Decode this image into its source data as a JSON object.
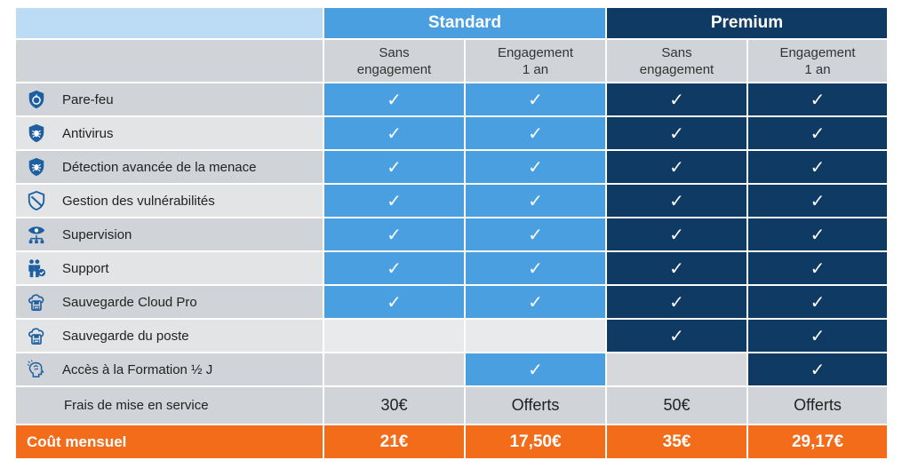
{
  "header": {
    "standard": "Standard",
    "premium": "Premium"
  },
  "subheader": {
    "no_commit": [
      "Sans",
      "engagement"
    ],
    "one_year": [
      "Engagement",
      "1 an"
    ]
  },
  "check_glyph": "✓",
  "features": [
    {
      "label": "Pare-feu",
      "icon": "firewall-icon",
      "values": [
        true,
        true,
        true,
        true
      ]
    },
    {
      "label": "Antivirus",
      "icon": "antivirus-icon",
      "values": [
        true,
        true,
        true,
        true
      ]
    },
    {
      "label": "Détection avancée de la menace",
      "icon": "threat-detection-icon",
      "values": [
        true,
        true,
        true,
        true
      ]
    },
    {
      "label": "Gestion des vulnérabilités",
      "icon": "vulnerability-shield-icon",
      "values": [
        true,
        true,
        true,
        true
      ]
    },
    {
      "label": "Supervision",
      "icon": "supervision-eye-icon",
      "values": [
        true,
        true,
        true,
        true
      ]
    },
    {
      "label": "Support",
      "icon": "support-people-icon",
      "values": [
        true,
        true,
        true,
        true
      ]
    },
    {
      "label": "Sauvegarde Cloud Pro",
      "icon": "cloud-backup-icon",
      "values": [
        true,
        true,
        true,
        true
      ]
    },
    {
      "label": "Sauvegarde du poste",
      "icon": "workstation-backup-icon",
      "values": [
        false,
        false,
        true,
        true
      ]
    },
    {
      "label": "Accès à la Formation ½ J",
      "icon": "training-brain-icon",
      "values": [
        false,
        true,
        false,
        true
      ]
    }
  ],
  "fees": {
    "label": "Frais de mise en service",
    "values": [
      "30€",
      "Offerts",
      "50€",
      "Offerts"
    ]
  },
  "cost": {
    "label": "Coût mensuel",
    "values": [
      "21€",
      "17,50€",
      "35€",
      "29,17€"
    ]
  },
  "colors": {
    "standard": "#4a9fe1",
    "premium": "#0f3a63",
    "cost_row": "#f26c1a",
    "icon_blue": "#1e5fa0"
  }
}
